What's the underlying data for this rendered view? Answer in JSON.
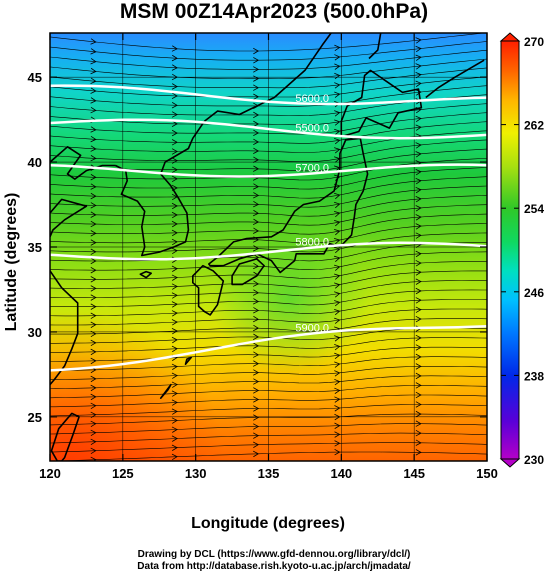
{
  "header": {
    "title": "MSM 00Z14Apr2023 (500.0hPa)"
  },
  "axes": {
    "x": {
      "label": "Longitude (degrees)",
      "range": [
        120,
        150
      ],
      "ticks": [
        "120",
        "125",
        "130",
        "135",
        "140",
        "145",
        "150"
      ]
    },
    "y": {
      "label": "Latitude  (degrees)",
      "range": [
        22.4,
        47.6
      ],
      "ticks": [
        "25",
        "30",
        "35",
        "40",
        "45"
      ]
    }
  },
  "colorbar": {
    "range": [
      230,
      270
    ],
    "ticks": [
      "230",
      "238",
      "246",
      "254",
      "262",
      "270"
    ]
  },
  "contours": [
    {
      "label": "5500.0",
      "lat_west": 42.3,
      "lat_east": 41.6
    },
    {
      "label": "5600.0",
      "lat_west": 44.2,
      "lat_east": 43.5
    },
    {
      "label": "5700.0",
      "lat_west": 39.5,
      "lat_east": 39.5
    },
    {
      "label": "5800.0",
      "lat_west": 34.5,
      "lat_east": 35.0
    },
    {
      "label": "5900.0",
      "lat_west": 28.0,
      "lat_east": 30.6
    }
  ],
  "footer": {
    "line1": "Drawing by DCL (https://www.gfd-dennou.org/library/dcl/)",
    "line2": "Data from http://database.rish.kyoto-u.ac.jp/arch/jmadata/"
  }
}
